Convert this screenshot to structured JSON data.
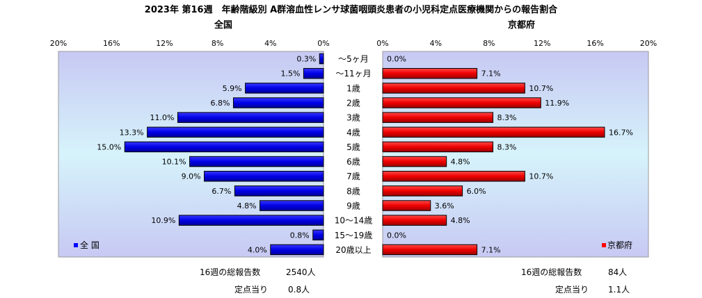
{
  "title": "2023年 第16週　年齢階級別 A群溶血性レンサ球菌咽頭炎患者の小児科定点医療機関からの報告割合",
  "categories": [
    "～5ヶ月",
    "～11ヶ月",
    "1歳",
    "2歳",
    "3歳",
    "4歳",
    "5歳",
    "6歳",
    "7歳",
    "8歳",
    "9歳",
    "10～14歳",
    "15～19歳",
    "20歳以上"
  ],
  "left_panel": {
    "subtitle": "全国",
    "legend": "全 国",
    "values": [
      0.3,
      1.5,
      5.9,
      6.8,
      11.0,
      13.3,
      15.0,
      10.1,
      9.0,
      6.7,
      4.8,
      10.9,
      0.8,
      4.0
    ],
    "total_label": "16週の総報告数",
    "total_value": "2540人",
    "per_site_label": "定点当り",
    "per_site_value": "0.8人",
    "color": "#0000ff"
  },
  "right_panel": {
    "subtitle": "京都府",
    "legend": "京都府",
    "values": [
      0.0,
      7.1,
      10.7,
      11.9,
      8.3,
      16.7,
      8.3,
      4.8,
      10.7,
      6.0,
      3.6,
      4.8,
      0.0,
      7.1
    ],
    "total_label": "16週の総報告数",
    "total_value": "84人",
    "per_site_label": "定点当り",
    "per_site_value": "1.1人",
    "color": "#ff0000"
  },
  "chart_data": [
    {
      "type": "bar",
      "title": "全国",
      "categories": [
        "～5ヶ月",
        "～11ヶ月",
        "1歳",
        "2歳",
        "3歳",
        "4歳",
        "5歳",
        "6歳",
        "7歳",
        "8歳",
        "9歳",
        "10～14歳",
        "15～19歳",
        "20歳以上"
      ],
      "series": [
        {
          "name": "全 国",
          "values": [
            0.3,
            1.5,
            5.9,
            6.8,
            11.0,
            13.3,
            15.0,
            10.1,
            9.0,
            6.7,
            4.8,
            10.9,
            0.8,
            4.0
          ]
        }
      ],
      "xlim": [
        0,
        20
      ],
      "ticks": [
        "20%",
        "16%",
        "12%",
        "8%",
        "4%",
        "0%"
      ],
      "grid": false,
      "legend_position": "bottom-left"
    },
    {
      "type": "bar",
      "title": "京都府",
      "categories": [
        "～5ヶ月",
        "～11ヶ月",
        "1歳",
        "2歳",
        "3歳",
        "4歳",
        "5歳",
        "6歳",
        "7歳",
        "8歳",
        "9歳",
        "10～14歳",
        "15～19歳",
        "20歳以上"
      ],
      "series": [
        {
          "name": "京都府",
          "values": [
            0.0,
            7.1,
            10.7,
            11.9,
            8.3,
            16.7,
            8.3,
            4.8,
            10.7,
            6.0,
            3.6,
            4.8,
            0.0,
            7.1
          ]
        }
      ],
      "xlim": [
        0,
        20
      ],
      "ticks": [
        "0%",
        "4%",
        "8%",
        "12%",
        "16%",
        "20%"
      ],
      "grid": false,
      "legend_position": "bottom-right"
    }
  ]
}
